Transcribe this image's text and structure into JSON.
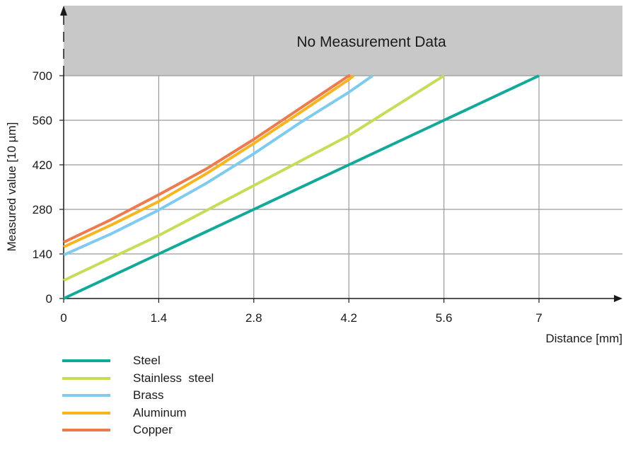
{
  "chart_data": {
    "type": "line",
    "band_label": "No Measurement Data",
    "xlabel": "Distance  [mm]",
    "ylabel": "Measured value  [10 µm]",
    "xlim": [
      0,
      8.7
    ],
    "ylim": [
      0,
      700
    ],
    "x_ticks": [
      0,
      1.4,
      2.8,
      4.2,
      5.6,
      7
    ],
    "x_tick_labels": [
      "0",
      "1.4",
      "2.8",
      "4.2",
      "5.6",
      "7"
    ],
    "y_ticks": [
      0,
      140,
      280,
      420,
      560,
      700
    ],
    "y_tick_labels": [
      "0",
      "140",
      "280",
      "420",
      "560",
      "700"
    ],
    "grid": true,
    "legend_position": "bottom-left",
    "series": [
      {
        "name": "Steel",
        "color": "#12a99b",
        "x": [
          0,
          1.4,
          2.8,
          4.2,
          5.6,
          7.0
        ],
        "y": [
          0,
          140,
          280,
          420,
          560,
          700
        ]
      },
      {
        "name": "Stainless  steel",
        "color": "#c9dc5a",
        "x": [
          0,
          1.4,
          2.8,
          4.2,
          5.6
        ],
        "y": [
          57,
          198,
          355,
          512,
          700
        ]
      },
      {
        "name": "Brass",
        "color": "#7ecbef",
        "x": [
          0,
          0.7,
          1.4,
          2.1,
          2.8,
          3.5,
          4.2,
          4.55
        ],
        "y": [
          137,
          203,
          278,
          362,
          455,
          555,
          648,
          700
        ]
      },
      {
        "name": "Aluminum",
        "color": "#f7b520",
        "x": [
          0,
          0.7,
          1.4,
          2.1,
          2.8,
          3.5,
          4.2,
          4.27
        ],
        "y": [
          162,
          231,
          305,
          392,
          487,
          587,
          688,
          700
        ]
      },
      {
        "name": "Copper",
        "color": "#ee7b4f",
        "x": [
          0,
          0.7,
          1.4,
          2.1,
          2.8,
          3.5,
          4.2,
          4.22
        ],
        "y": [
          177,
          248,
          326,
          407,
          500,
          600,
          700,
          700
        ]
      }
    ]
  }
}
